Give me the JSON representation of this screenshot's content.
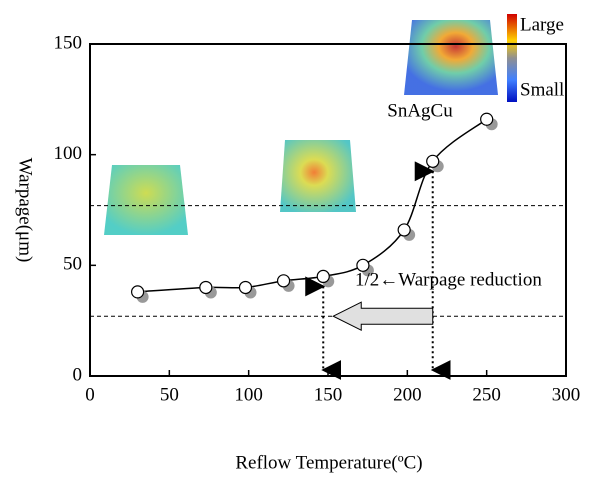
{
  "chart_data": {
    "type": "line",
    "x_label": "Reflow Temperature(ºC)",
    "y_label": "Warpage(μm)",
    "x": [
      30,
      73,
      98,
      122,
      147,
      172,
      198,
      216,
      250
    ],
    "series": [
      {
        "name": "SnAgCu",
        "color": "#000000",
        "values": [
          38,
          40,
          40,
          43,
          45,
          50,
          66,
          97,
          116
        ]
      }
    ],
    "xlim": [
      0,
      300
    ],
    "xticks": [
      0,
      50,
      100,
      150,
      200,
      250,
      300
    ],
    "ylim": [
      0,
      150
    ],
    "yticks": [
      0,
      50,
      100,
      150
    ],
    "reference_lines": [
      77,
      27
    ],
    "annotation": "1/2←Warpage reduction",
    "colorbar_labels": [
      "Large",
      "Small"
    ]
  }
}
